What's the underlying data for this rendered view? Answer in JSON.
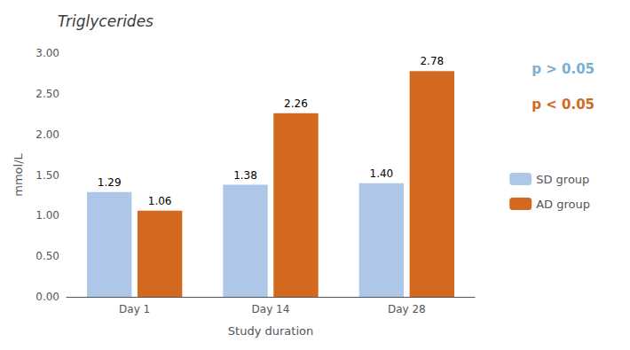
{
  "chart_data": {
    "type": "bar",
    "title": "Triglycerides",
    "xlabel": "Study duration",
    "ylabel": "mmol/L",
    "categories": [
      "Day 1",
      "Day 14",
      "Day 28"
    ],
    "series": [
      {
        "name": "SD group",
        "color": "#aec6e8",
        "values": [
          1.29,
          1.38,
          1.4
        ],
        "value_labels": [
          "1.29",
          "1.38",
          "1.40"
        ]
      },
      {
        "name": "AD group",
        "color": "#d2691e",
        "values": [
          1.06,
          2.26,
          2.78
        ],
        "value_labels": [
          "1.06",
          "2.26",
          "2.78"
        ]
      }
    ],
    "ylim": [
      0,
      3.0
    ],
    "yticks": [
      {
        "value": 0.0,
        "label": "0.00"
      },
      {
        "value": 0.5,
        "label": "0.50"
      },
      {
        "value": 1.0,
        "label": "1.00"
      },
      {
        "value": 1.5,
        "label": "1.50"
      },
      {
        "value": 2.0,
        "label": "2.00"
      },
      {
        "value": 2.5,
        "label": "2.50"
      },
      {
        "value": 3.0,
        "label": "3.00"
      }
    ],
    "data_labels": true,
    "grid": false,
    "legend": "right",
    "annotations": [
      {
        "text": "p > 0.05",
        "color": "#7bafd4"
      },
      {
        "text": "p < 0.05",
        "color": "#d2691e"
      }
    ]
  }
}
